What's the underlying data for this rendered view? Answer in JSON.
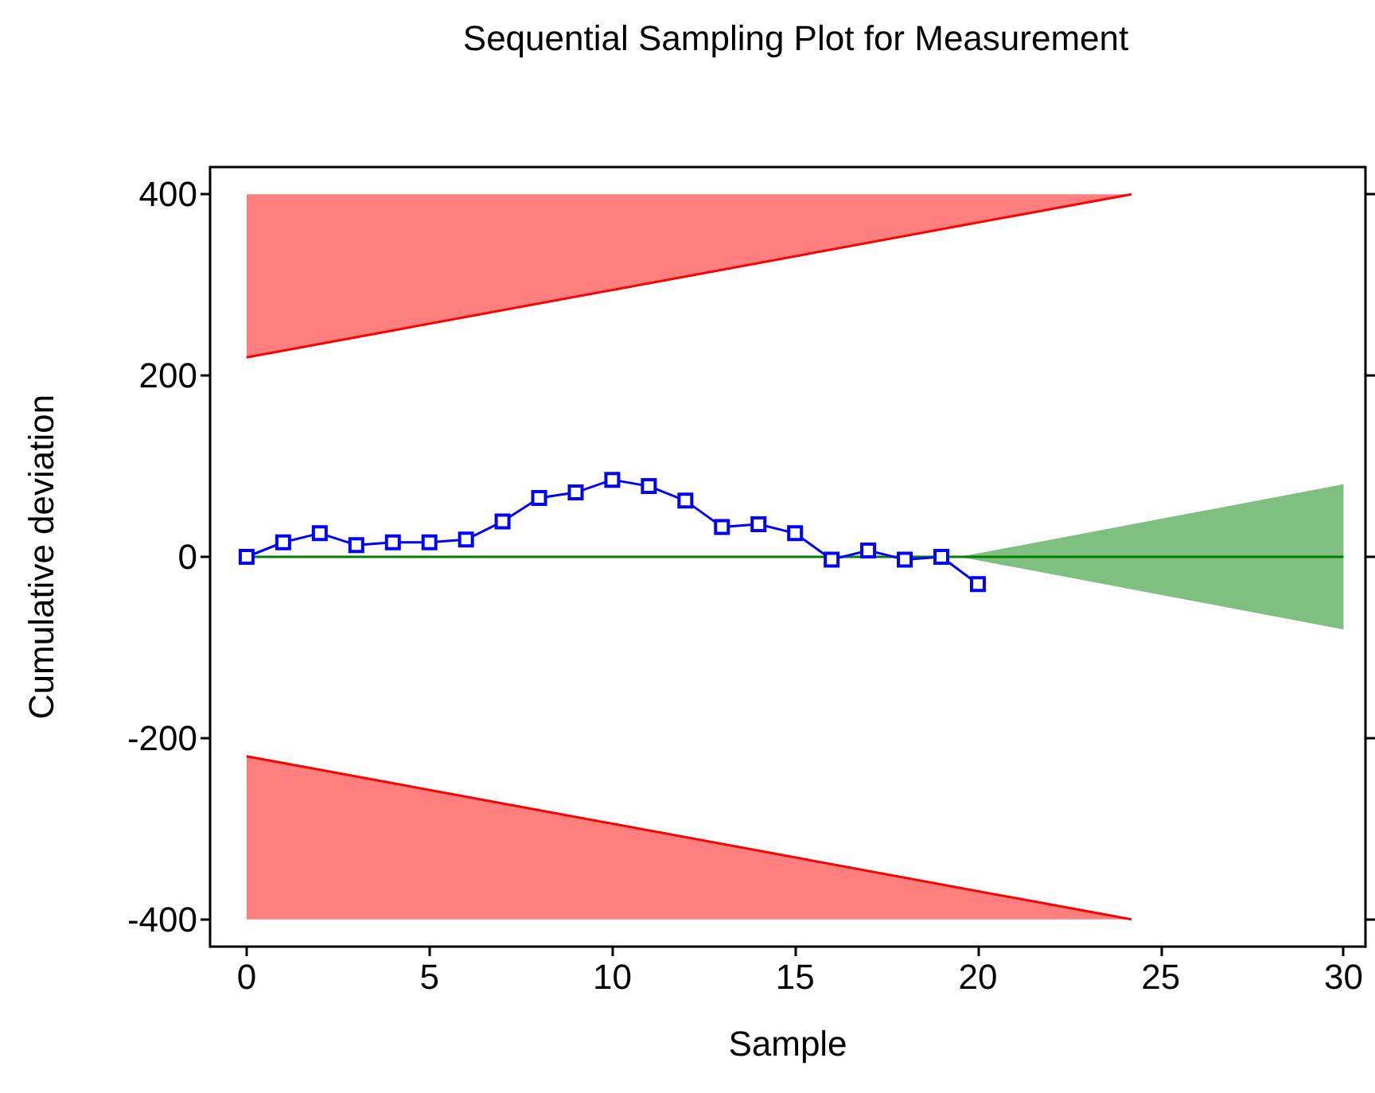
{
  "chart_data": {
    "type": "line",
    "title": "Sequential Sampling Plot for Measurement",
    "xlabel": "Sample",
    "ylabel": "Cumulative deviation",
    "xlim": [
      -1,
      30.6
    ],
    "xticks": [
      0,
      5,
      10,
      15,
      20,
      25,
      30
    ],
    "ylim": [
      -430,
      430
    ],
    "yticks": [
      -400,
      -200,
      0,
      200,
      400
    ],
    "grid": false,
    "marker": "none",
    "series": [
      {
        "color": "#ff0000",
        "x": [
          0,
          24.2
        ],
        "values": [
          220,
          400
        ],
        "lower": [
          220,
          400
        ],
        "upper": [
          400,
          400
        ]
      },
      {
        "color": "#ff0000",
        "x": [
          0,
          24.2
        ],
        "values": [
          -220,
          -400
        ],
        "lower": [
          -400,
          -400
        ],
        "upper": [
          -220,
          -400
        ]
      },
      {
        "color": "#008000",
        "x": [
          0,
          19.5,
          30
        ],
        "values": [
          0,
          0,
          0
        ],
        "lower": [
          0,
          0,
          -80
        ],
        "upper": [
          0,
          0,
          80
        ]
      },
      {
        "color": "#0000ff",
        "x": [
          0,
          1,
          2,
          3,
          4,
          5,
          6,
          7,
          8,
          9,
          10,
          11,
          12,
          13,
          14,
          15,
          16,
          17,
          18,
          19,
          20
        ],
        "values": [
          0,
          16,
          26,
          13,
          16,
          16,
          19,
          39,
          65,
          71,
          85,
          78,
          62,
          33,
          36,
          26,
          -3,
          7,
          -3,
          0,
          -30
        ],
        "marker": "square"
      }
    ]
  }
}
